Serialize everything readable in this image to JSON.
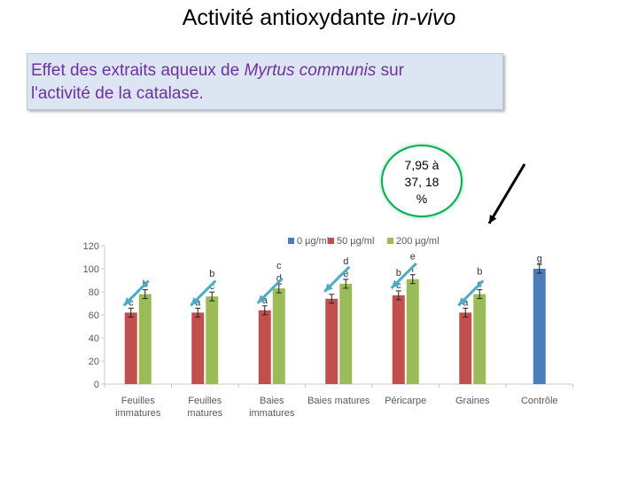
{
  "title": {
    "before": "Activité antioxydante ",
    "italic": "in-vivo"
  },
  "subtitle": {
    "part1": "Effet des extraits aqueux de ",
    "italic": "Myrtus communis",
    "part2": " sur",
    "line2": "l'activité de la catalase."
  },
  "callout": {
    "line1": "7,95  à",
    "line2": "37, 18",
    "line3": "%"
  },
  "colors": {
    "s0": "#4a7ebb",
    "s50": "#c0504d",
    "s200": "#9bbb59",
    "arrow": "#4bacc6",
    "callout_border": "#00b050"
  },
  "chart_data": {
    "type": "bar",
    "ylim": [
      0,
      120
    ],
    "yticks": [
      "0",
      "20",
      "40",
      "60",
      "80",
      "100",
      "120"
    ],
    "categories": [
      [
        "Feuilles",
        "immatures"
      ],
      [
        "Feuilles",
        "matures"
      ],
      [
        "Baies",
        "immatures"
      ],
      [
        "Baies matures"
      ],
      [
        "Péricarpe"
      ],
      [
        "Graines"
      ],
      [
        "Contrôle"
      ]
    ],
    "series": [
      {
        "name": "0 µg/ml",
        "values": [
          null,
          null,
          null,
          null,
          null,
          null,
          100
        ]
      },
      {
        "name": "50 µg/ml",
        "values": [
          62,
          62,
          64,
          74,
          77,
          62,
          null
        ]
      },
      {
        "name": "200 µg/ml",
        "values": [
          78,
          76,
          83,
          87,
          91,
          78,
          null
        ]
      }
    ],
    "letters": [
      {
        "text": "b",
        "cat": 0,
        "s": 2
      },
      {
        "text": "c",
        "cat": 0,
        "s": 1
      },
      {
        "text": "a",
        "cat": 1,
        "s": 1
      },
      {
        "text": "b",
        "cat": 1,
        "s": 2
      },
      {
        "text": "c",
        "cat": 1,
        "s": 2
      },
      {
        "text": "a",
        "cat": 2,
        "s": 1
      },
      {
        "text": "c",
        "cat": 2,
        "s": 2
      },
      {
        "text": "d",
        "cat": 2,
        "s": 2
      },
      {
        "text": "d",
        "cat": 3,
        "s": 2
      },
      {
        "text": "e",
        "cat": 3,
        "s": 2
      },
      {
        "text": "b",
        "cat": 4,
        "s": 1
      },
      {
        "text": "c",
        "cat": 4,
        "s": 1
      },
      {
        "text": "e",
        "cat": 4,
        "s": 2
      },
      {
        "text": "f",
        "cat": 4,
        "s": 2
      },
      {
        "text": "a",
        "cat": 5,
        "s": 1
      },
      {
        "text": "b",
        "cat": 5,
        "s": 2
      },
      {
        "text": "c",
        "cat": 5,
        "s": 2
      },
      {
        "text": "g",
        "cat": 6,
        "s": 0
      }
    ]
  }
}
